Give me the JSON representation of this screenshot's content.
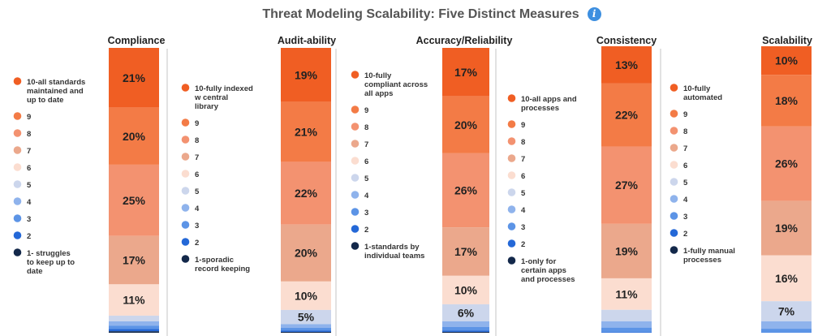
{
  "chart_data": {
    "type": "bar",
    "title": "Threat Modeling Scalability: Five Distinct Measures",
    "levels": [
      "10",
      "9",
      "8",
      "7",
      "6",
      "5",
      "4",
      "3",
      "2",
      "1"
    ],
    "level_colors": [
      "#f05e23",
      "#f37b46",
      "#f39270",
      "#eba88c",
      "#fbddd0",
      "#ccd6ec",
      "#8fb3ec",
      "#5c94e6",
      "#2468d7",
      "#13284a"
    ],
    "charts": [
      {
        "name": "Compliance",
        "values": [
          21,
          20,
          25,
          17,
          11,
          2,
          1.5,
          1.2,
          0.8,
          0.5
        ],
        "labels": [
          "21%",
          "20%",
          "25%",
          "17%",
          "11%",
          "",
          "",
          "",
          "",
          ""
        ],
        "legend": [
          "10-all standards maintained and up to date",
          "9",
          "8",
          "7",
          "6",
          "5",
          "4",
          "3",
          "2",
          "1- struggles to keep up to date"
        ]
      },
      {
        "name": "Audit-ability",
        "values": [
          19,
          21,
          22,
          20,
          10,
          5,
          1.3,
          0.9,
          0.5,
          0.3
        ],
        "labels": [
          "19%",
          "21%",
          "22%",
          "20%",
          "10%",
          "5%",
          "",
          "",
          "",
          ""
        ],
        "legend": [
          "10-fully indexed w central library",
          "9",
          "8",
          "7",
          "6",
          "5",
          "4",
          "3",
          "2",
          "1-sporadic record keeping"
        ]
      },
      {
        "name": "Accuracy/Reliability",
        "values": [
          17,
          20,
          26,
          17,
          10,
          6,
          2,
          1.2,
          0.5,
          0.3
        ],
        "labels": [
          "17%",
          "20%",
          "26%",
          "17%",
          "10%",
          "6%",
          "",
          "",
          "",
          ""
        ],
        "legend": [
          "10-fully compliant across all apps",
          "9",
          "8",
          "7",
          "6",
          "5",
          "4",
          "3",
          "2",
          "1-standards by individual teams"
        ]
      },
      {
        "name": "Consistency",
        "values": [
          13,
          22,
          27,
          19,
          11,
          4,
          2.2,
          1.6,
          0.2,
          0
        ],
        "labels": [
          "13%",
          "22%",
          "27%",
          "19%",
          "11%",
          "",
          "",
          "",
          "",
          ""
        ],
        "legend": [
          "10-all apps and processes",
          "9",
          "8",
          "7",
          "6",
          "5",
          "4",
          "3",
          "2",
          "1-only for certain apps and processes"
        ]
      },
      {
        "name": "Scalability",
        "values": [
          10,
          18,
          26,
          19,
          16,
          7,
          2.6,
          1.4,
          0,
          0
        ],
        "labels": [
          "10%",
          "18%",
          "26%",
          "19%",
          "16%",
          "7%",
          "",
          "",
          "",
          ""
        ],
        "legend": [
          "10-fully automated",
          "9",
          "8",
          "7",
          "6",
          "5",
          "4",
          "3",
          "2",
          "1-fully manual processes"
        ]
      }
    ]
  },
  "icons": {
    "info": "info-icon",
    "info_glyph": "i"
  }
}
